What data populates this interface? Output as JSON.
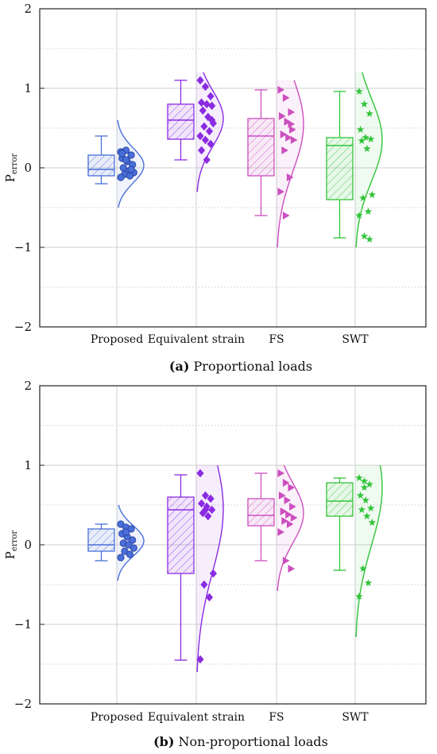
{
  "chart_data": [
    {
      "type": "box",
      "panel": "a",
      "caption_letter": "(a)",
      "caption_text": " Proportional loads",
      "ylabel": "P",
      "ylabel_sub": "error",
      "ylim": [
        -2,
        2
      ],
      "yticks": [
        -2,
        -1,
        0,
        1,
        2
      ],
      "grid": true,
      "categories": [
        "Proposed",
        "Equivalent strain",
        "FS",
        "SWT"
      ],
      "series": [
        {
          "box": {
            "min": -0.2,
            "q1": -0.1,
            "median": -0.02,
            "q3": 0.16,
            "max": 0.4
          },
          "points": [
            0.2,
            0.22,
            0.16,
            0.12,
            0.08,
            0.04,
            0.0,
            -0.04,
            -0.06,
            -0.08,
            -0.1,
            -0.12,
            0.1,
            -0.02,
            0.18
          ],
          "curve": {
            "peak": 0.03,
            "min": -0.5,
            "max": 0.6
          }
        },
        {
          "box": {
            "min": 0.1,
            "q1": 0.36,
            "median": 0.6,
            "q3": 0.8,
            "max": 1.1
          },
          "points": [
            1.1,
            1.02,
            0.9,
            0.82,
            0.8,
            0.78,
            0.72,
            0.64,
            0.56,
            0.52,
            0.46,
            0.4,
            0.35,
            0.3,
            0.22,
            0.1,
            0.6
          ],
          "curve": {
            "peak": 0.62,
            "min": -0.3,
            "max": 1.2
          }
        },
        {
          "box": {
            "min": -0.6,
            "q1": -0.1,
            "median": 0.4,
            "q3": 0.62,
            "max": 0.98
          },
          "points": [
            0.98,
            0.88,
            0.7,
            0.65,
            0.58,
            0.48,
            0.42,
            0.38,
            0.35,
            0.22,
            -0.12,
            -0.3,
            -0.6,
            0.55
          ],
          "curve": {
            "peak": 0.55,
            "min": -1.0,
            "max": 1.1
          }
        },
        {
          "box": {
            "min": -0.88,
            "q1": -0.4,
            "median": 0.28,
            "q3": 0.38,
            "max": 0.96
          },
          "points": [
            0.96,
            0.8,
            0.68,
            0.48,
            0.38,
            0.36,
            0.34,
            0.24,
            -0.34,
            -0.38,
            -0.55,
            -0.6,
            -0.86,
            -0.9
          ],
          "curve": {
            "peak": 0.35,
            "min": -1.0,
            "max": 1.2
          }
        }
      ]
    },
    {
      "type": "box",
      "panel": "b",
      "caption_letter": "(b)",
      "caption_text": " Non-proportional loads",
      "ylabel": "P",
      "ylabel_sub": "error",
      "ylim": [
        -2,
        2
      ],
      "yticks": [
        -2,
        -1,
        0,
        1,
        2
      ],
      "grid": true,
      "categories": [
        "Proposed",
        "Equivalent strain",
        "FS",
        "SWT"
      ],
      "series": [
        {
          "box": {
            "min": -0.2,
            "q1": -0.08,
            "median": 0.0,
            "q3": 0.2,
            "max": 0.26
          },
          "points": [
            0.26,
            0.22,
            0.2,
            0.14,
            0.1,
            0.06,
            0.02,
            0.0,
            -0.04,
            -0.08,
            -0.12,
            -0.16,
            0.16
          ],
          "curve": {
            "peak": 0.05,
            "min": -0.45,
            "max": 0.5
          }
        },
        {
          "box": {
            "min": -1.45,
            "q1": -0.36,
            "median": 0.44,
            "q3": 0.6,
            "max": 0.88
          },
          "points": [
            0.9,
            0.62,
            0.58,
            0.52,
            0.48,
            0.44,
            0.4,
            0.36,
            -0.36,
            -0.5,
            -0.66,
            -1.44,
            0.44
          ],
          "curve": {
            "peak": 0.45,
            "min": -1.6,
            "max": 1.0
          }
        },
        {
          "box": {
            "min": -0.2,
            "q1": 0.24,
            "median": 0.37,
            "q3": 0.58,
            "max": 0.9
          },
          "points": [
            0.9,
            0.78,
            0.72,
            0.62,
            0.56,
            0.48,
            0.42,
            0.38,
            0.34,
            0.3,
            0.26,
            0.16,
            -0.2,
            -0.3
          ],
          "curve": {
            "peak": 0.4,
            "min": -0.58,
            "max": 1.0
          }
        },
        {
          "box": {
            "min": -0.32,
            "q1": 0.36,
            "median": 0.55,
            "q3": 0.78,
            "max": 0.84
          },
          "points": [
            0.84,
            0.8,
            0.76,
            0.62,
            0.56,
            0.46,
            0.44,
            0.36,
            0.28,
            -0.3,
            -0.48,
            -0.65,
            0.72
          ],
          "curve": {
            "peak": 0.72,
            "min": -1.16,
            "max": 1.0
          }
        }
      ]
    }
  ],
  "colors": [
    "#4a6fd8",
    "#8a2be2",
    "#cc4fbf",
    "#33c43a"
  ],
  "markers": [
    "circle",
    "diamond",
    "triangle-right",
    "star"
  ]
}
